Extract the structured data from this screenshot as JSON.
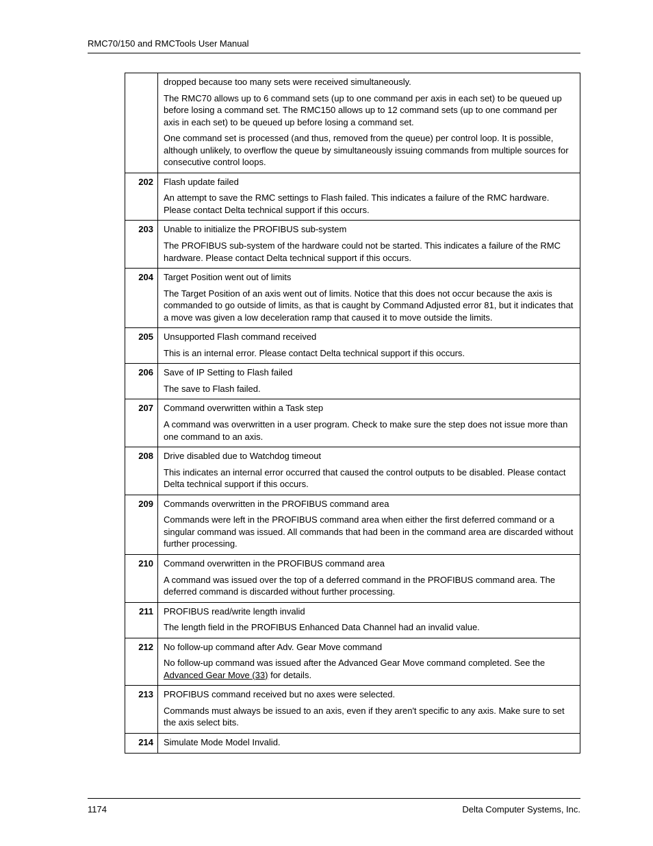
{
  "header": {
    "title": "RMC70/150 and RMCTools User Manual"
  },
  "footer": {
    "page_number": "1174",
    "company": "Delta Computer Systems, Inc."
  },
  "table": {
    "rows": [
      {
        "code": "",
        "paragraphs": [
          "dropped because too many sets were received simultaneously.",
          "The RMC70 allows up to 6 command sets (up to one command per axis in each set) to be queued up before losing a command set. The RMC150 allows up to 12 command sets (up to one command per axis in each set) to be queued up before losing a command set.",
          "One command set is processed (and thus, removed from the queue) per control loop. It is possible, although unlikely, to overflow the queue by simultaneously issuing commands from multiple sources for consecutive control loops."
        ]
      },
      {
        "code": "202",
        "paragraphs": [
          "Flash update failed",
          "An attempt to save the RMC settings to Flash failed. This indicates a failure of the RMC hardware.  Please contact Delta technical support if this occurs."
        ]
      },
      {
        "code": "203",
        "paragraphs": [
          "Unable to initialize the PROFIBUS sub-system",
          "The PROFIBUS sub-system of the hardware could not be started. This indicates a failure of the RMC hardware. Please contact Delta technical support if this occurs."
        ]
      },
      {
        "code": "204",
        "paragraphs": [
          "Target Position went out of limits",
          "The Target Position of an axis went out of limits. Notice that this does not occur because the axis is commanded to go outside of limits, as that is caught by Command Adjusted error 81, but it indicates that a move was given a low deceleration ramp that caused it to move outside the limits."
        ]
      },
      {
        "code": "205",
        "paragraphs": [
          "Unsupported Flash command received",
          "This is an internal error. Please contact Delta technical support if this occurs."
        ]
      },
      {
        "code": "206",
        "paragraphs": [
          "Save of IP Setting to Flash failed",
          "The save to Flash failed."
        ]
      },
      {
        "code": "207",
        "paragraphs": [
          "Command overwritten within a Task step",
          "A command was overwritten in a user program. Check to make sure the step does not issue more than one command to an axis."
        ]
      },
      {
        "code": "208",
        "paragraphs": [
          "Drive disabled due to Watchdog timeout",
          "This indicates an internal error occurred that caused the control outputs to be disabled. Please contact Delta technical support if this occurs."
        ]
      },
      {
        "code": "209",
        "paragraphs": [
          "Commands overwritten in the PROFIBUS command area",
          "Commands were left in the PROFIBUS command area when either the first deferred command or a singular command was issued. All commands that had been in the command area are discarded without further processing."
        ]
      },
      {
        "code": "210",
        "paragraphs": [
          "Command overwritten in the PROFIBUS command area",
          "A command was issued over the top of a deferred command in the PROFIBUS command area. The deferred command is discarded without further processing."
        ]
      },
      {
        "code": "211",
        "paragraphs": [
          "PROFIBUS read/write length invalid",
          "The length field in the PROFIBUS Enhanced Data Channel had an invalid value."
        ]
      },
      {
        "code": "212",
        "paragraphs": [
          "No follow-up command after Adv. Gear Move command"
        ],
        "special": "212"
      },
      {
        "code": "213",
        "paragraphs": [
          "PROFIBUS command received but no axes were selected.",
          "Commands must always be issued to an axis, even if they aren't specific to any axis. Make sure to set the axis select bits."
        ]
      },
      {
        "code": "214",
        "paragraphs": [
          "Simulate Mode Model Invalid."
        ]
      }
    ],
    "row212_extra": {
      "prefix": "No follow-up command was issued after the Advanced Gear Move command completed. See the ",
      "link_text": "Advanced Gear Move (33)",
      "suffix": " for details."
    }
  }
}
